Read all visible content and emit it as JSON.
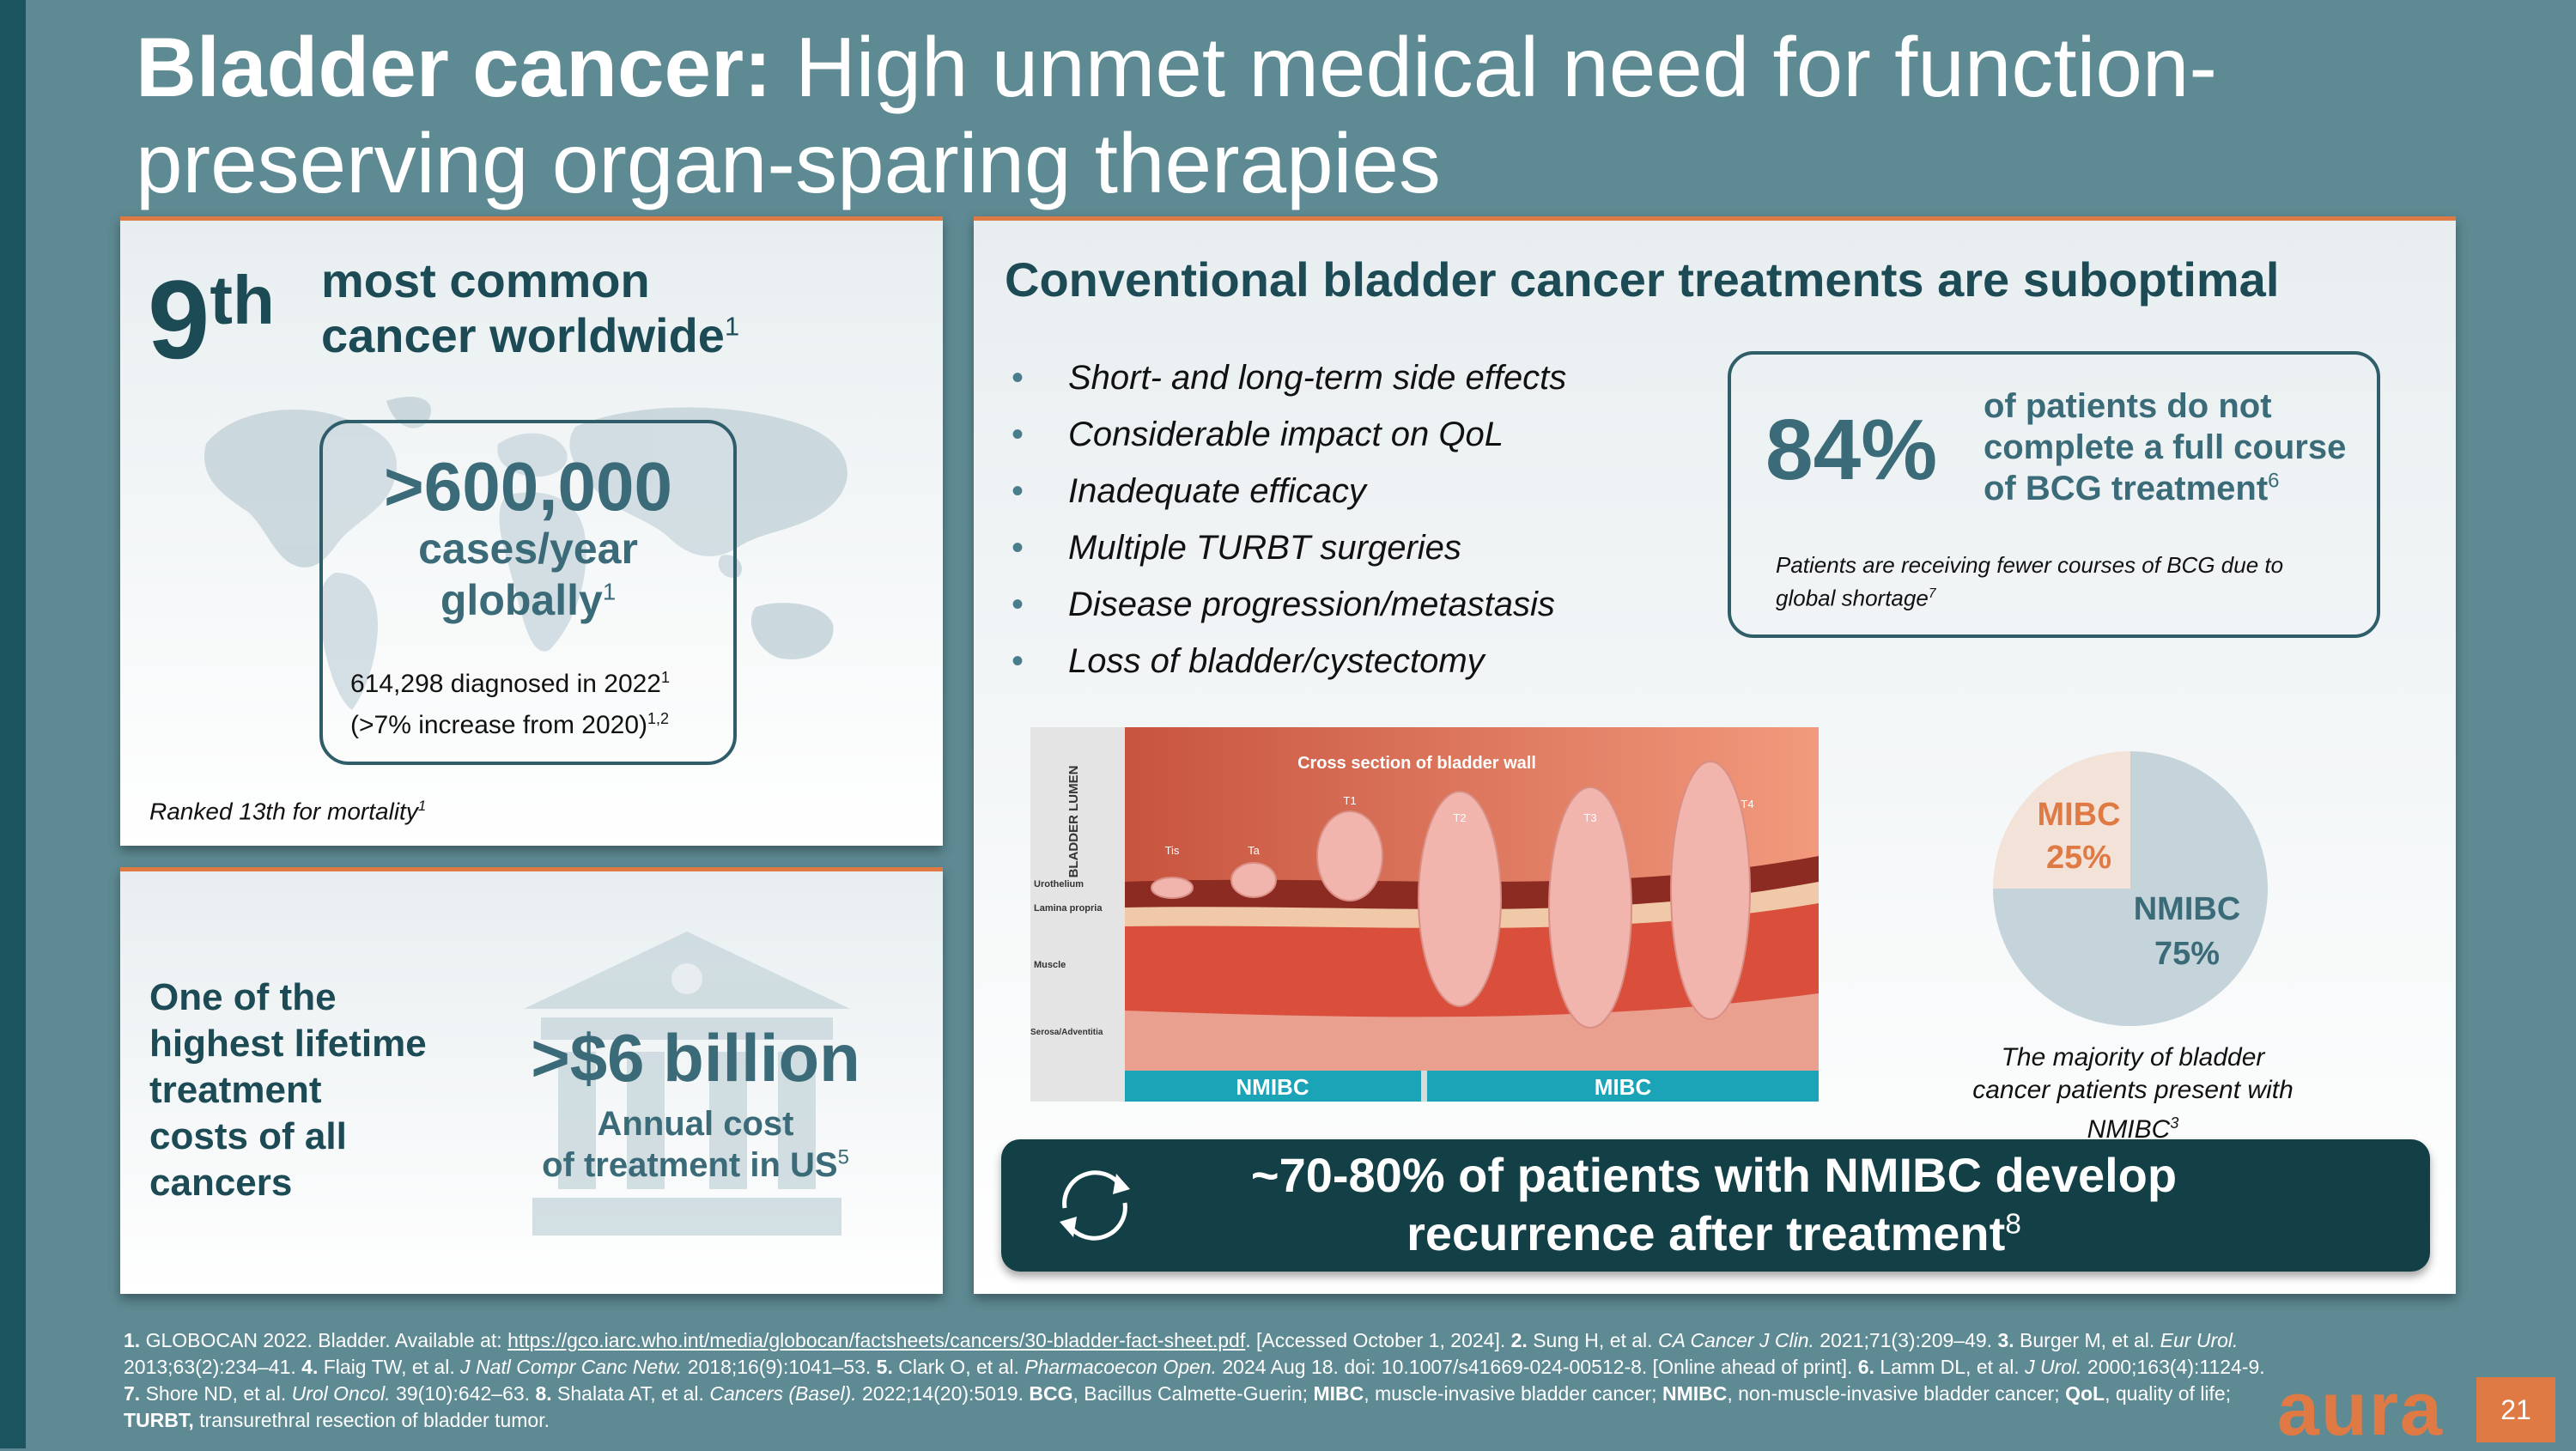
{
  "slide": {
    "title_bold": "Bladder cancer:",
    "title_rest": " High unmet medical need for function-preserving organ-sparing therapies",
    "page_number": "21",
    "logo": "aura"
  },
  "rank": {
    "number": "9",
    "suffix": "th",
    "line1": "most common",
    "line2": "cancer worldwide",
    "ref": "1",
    "cases_big": ">600,000",
    "cases_sub1": "cases/year",
    "cases_sub2": "globally",
    "cases_ref": "1",
    "detail1": "614,298 diagnosed in 2022",
    "detail1_ref": "1",
    "detail2": "(>7% increase from 2020)",
    "detail2_ref": "1,2",
    "mortality": "Ranked 13th for mortality",
    "mortality_ref": "1",
    "map_icon": "world-map-icon"
  },
  "cost": {
    "l1": "One of the",
    "l2": "highest lifetime",
    "l3": "treatment",
    "l4": "costs of all",
    "l5": "cancers",
    "amount": ">$6 billion",
    "annual1": "Annual cost",
    "annual2": "of treatment in US",
    "annual_ref": "5",
    "bg_icon": "bank-building-icon"
  },
  "treatments": {
    "heading": "Conventional bladder cancer treatments are suboptimal",
    "bullets": [
      "Short- and long-term side effects",
      "Considerable impact on QoL",
      "Inadequate efficacy",
      "Multiple TURBT surgeries",
      "Disease progression/metastasis",
      "Loss of bladder/cystectomy"
    ],
    "bcg_pct": "84%",
    "bcg_l1": "of patients do not",
    "bcg_l2": "complete a full course",
    "bcg_l3": "of BCG treatment",
    "bcg_ref": "6",
    "shortage": "Patients are receiving fewer courses of BCG due to global shortage",
    "shortage_ref": "7"
  },
  "illustration": {
    "caption": "Cross section of bladder wall",
    "lumen": "BLADDER LUMEN",
    "layers": [
      "Urothelium",
      "Lamina propria",
      "Muscle",
      "Serosa/Adventitia"
    ],
    "stages": [
      "Tis",
      "Ta",
      "T1",
      "T2",
      "T3",
      "T4"
    ],
    "nmibc_bar": "NMIBC",
    "mibc_bar": "MIBC",
    "colors": {
      "tissue": "#e8735f",
      "muscle": "#d94f3c",
      "tumor": "#f1b5ad",
      "bar": "#1ba3b8"
    }
  },
  "pie": {
    "mibc_label": "MIBC",
    "mibc_pct": "25%",
    "nmibc_label": "NMIBC",
    "nmibc_pct": "75%",
    "note1": "The majority of bladder",
    "note2": "cancer patients present with",
    "note3": "NMIBC",
    "note_ref": "3",
    "colors": {
      "mibc": "#f2e2d8",
      "nmibc": "#c4d4da",
      "mibc_text": "#e07a45",
      "nmibc_text": "#3b6b78"
    }
  },
  "chart_data": {
    "type": "pie",
    "categories": [
      "MIBC",
      "NMIBC"
    ],
    "values": [
      25,
      75
    ]
  },
  "recurrence": {
    "l1": "~70-80% of patients with NMIBC develop",
    "l2": "recurrence after treatment",
    "ref": "8",
    "icon": "recurrence-arrows-icon"
  },
  "references": {
    "r1_num": "1.",
    "r1_text": " GLOBOCAN 2022. Bladder. Available at: ",
    "r1_link": "https://gco.iarc.who.int/media/globocan/factsheets/cancers/30-bladder-fact-sheet.pdf",
    "r1_tail": ". [Accessed October 1, 2024]. ",
    "r2_num": "2.",
    "r2_text": " Sung H, et al. ",
    "r2_journal": "CA Cancer J Clin.",
    "r2_tail": " 2021;71(3):209–49. ",
    "r3_num": "3.",
    "r3_text": " Burger M, et al. ",
    "r3_journal": "Eur Urol.",
    "r3_tail": " 2013;63(2):234–41. ",
    "r4_num": "4.",
    "r4_text": " Flaig TW, et al. ",
    "r4_journal": "J Natl Compr Canc Netw.",
    "r4_tail": " 2018;16(9):1041–53. ",
    "r5_num": "5.",
    "r5_text": " Clark O, et al. ",
    "r5_journal": "Pharmacoecon Open.",
    "r5_tail": " 2024 Aug 18. doi: 10.1007/s41669-024-00512-8. [Online ahead of print]. ",
    "r6_num": "6.",
    "r6_text": " Lamm DL, et al. ",
    "r6_journal": "J Urol.",
    "r6_tail": " 2000;163(4):1124-9. ",
    "r7_num": "7.",
    "r7_text": " Shore ND, et al. ",
    "r7_journal": "Urol Oncol.",
    "r7_tail": " 39(10):642–63. ",
    "r8_num": "8.",
    "r8_text": " Shalata AT, et al. ",
    "r8_journal": "Cancers (Basel).",
    "r8_tail": " 2022;14(20):5019. ",
    "abbr_bcg": "BCG",
    "abbr_bcg_def": ", Bacillus Calmette-Guerin; ",
    "abbr_mibc": "MIBC",
    "abbr_mibc_def": ", muscle-invasive bladder cancer; ",
    "abbr_nmibc": "NMIBC",
    "abbr_nmibc_def": ", non-muscle-invasive bladder cancer; ",
    "abbr_qol": "QoL",
    "abbr_qol_def": ", quality of life; ",
    "abbr_turbt": "TURBT,",
    "abbr_turbt_def": " transurethral resection of bladder tumor."
  }
}
